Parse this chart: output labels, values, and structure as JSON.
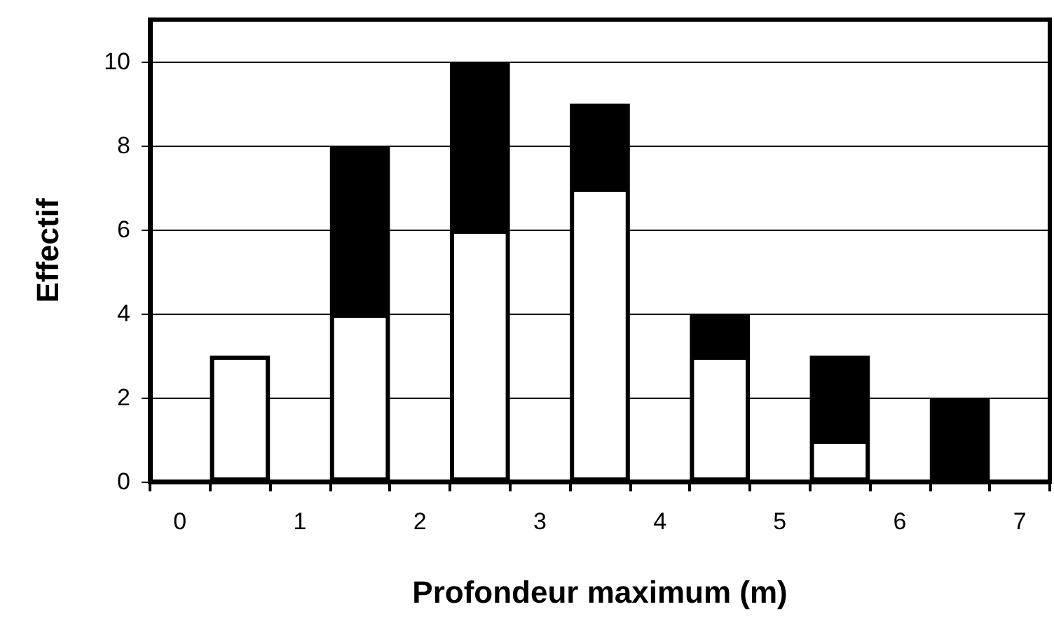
{
  "chart_data": {
    "type": "bar",
    "stacked": true,
    "xlabel": "Profondeur maximum (m)",
    "ylabel": "Effectif",
    "categories": [
      "0",
      null,
      "1",
      null,
      "2",
      null,
      "3",
      null,
      "4",
      null,
      "5",
      null,
      "6",
      null,
      "7"
    ],
    "series": [
      {
        "color": "#ffffff",
        "values": [
          null,
          3,
          null,
          4,
          null,
          6,
          null,
          7,
          null,
          3,
          null,
          1,
          null,
          null,
          null
        ]
      },
      {
        "color": "#000000",
        "values": [
          null,
          null,
          null,
          4,
          null,
          4,
          null,
          2,
          null,
          1,
          null,
          2,
          null,
          2,
          null
        ]
      }
    ],
    "ylim": [
      0,
      11
    ],
    "yticks": [
      0,
      2,
      4,
      6,
      8,
      10
    ],
    "grid": "y"
  }
}
